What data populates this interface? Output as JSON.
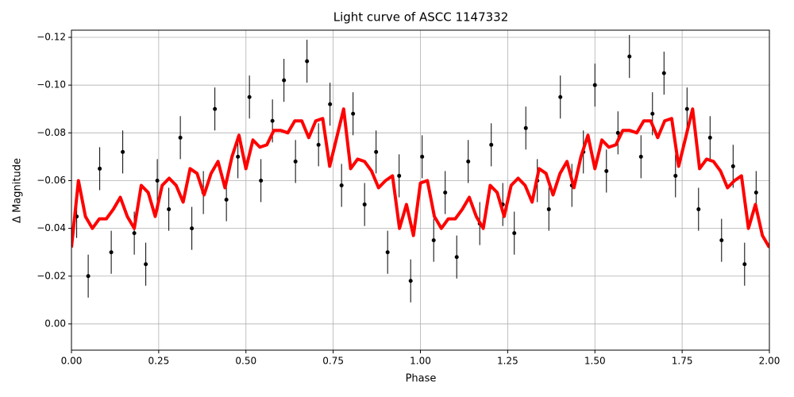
{
  "chart_data": {
    "type": "errorbar_scatter_line",
    "title": "Light curve of ASCC 1147332",
    "xlabel": "Phase",
    "ylabel": "Δ Magnitude",
    "xlim": [
      0,
      2
    ],
    "ylim": [
      -0.123,
      0.011
    ],
    "y_inverted": true,
    "grid": true,
    "xticks": [
      {
        "value": 0,
        "label": "0.00"
      },
      {
        "value": 0.25,
        "label": "0.25"
      },
      {
        "value": 0.5,
        "label": "0.50"
      },
      {
        "value": 0.75,
        "label": "0.75"
      },
      {
        "value": 1,
        "label": "1.00"
      },
      {
        "value": 1.25,
        "label": "1.25"
      },
      {
        "value": 1.5,
        "label": "1.50"
      },
      {
        "value": 1.75,
        "label": "1.75"
      },
      {
        "value": 2,
        "label": "2.00"
      }
    ],
    "yticks": [
      {
        "value": -0.12,
        "label": "−0.12"
      },
      {
        "value": -0.1,
        "label": "−0.10"
      },
      {
        "value": -0.08,
        "label": "−0.08"
      },
      {
        "value": -0.06,
        "label": "−0.06"
      },
      {
        "value": -0.04,
        "label": "−0.04"
      },
      {
        "value": -0.02,
        "label": "−0.02"
      },
      {
        "value": 0,
        "label": "0.00"
      }
    ],
    "series": [
      {
        "kind": "points",
        "color": "#000000",
        "error": 0.009,
        "x": [
          0.015,
          0.048,
          0.081,
          0.114,
          0.147,
          0.18,
          0.213,
          0.246,
          0.279,
          0.312,
          0.345,
          0.378,
          0.411,
          0.444,
          0.477,
          0.51,
          0.543,
          0.576,
          0.609,
          0.642,
          0.675,
          0.708,
          0.741,
          0.774,
          0.807,
          0.84,
          0.873,
          0.906,
          0.939,
          0.972,
          1.005,
          1.038,
          1.071,
          1.104,
          1.137,
          1.17,
          1.203,
          1.236,
          1.269,
          1.302,
          1.335,
          1.368,
          1.401,
          1.434,
          1.467,
          1.5,
          1.533,
          1.566,
          1.599,
          1.632,
          1.665,
          1.698,
          1.731,
          1.764,
          1.797,
          1.83,
          1.863,
          1.896,
          1.929,
          1.962
        ],
        "values": [
          -0.045,
          -0.02,
          -0.065,
          -0.03,
          -0.072,
          -0.038,
          -0.025,
          -0.06,
          -0.048,
          -0.078,
          -0.04,
          -0.055,
          -0.09,
          -0.052,
          -0.07,
          -0.095,
          -0.06,
          -0.085,
          -0.102,
          -0.068,
          -0.11,
          -0.075,
          -0.092,
          -0.058,
          -0.088,
          -0.05,
          -0.072,
          -0.03,
          -0.062,
          -0.018,
          -0.07,
          -0.035,
          -0.055,
          -0.028,
          -0.068,
          -0.042,
          -0.075,
          -0.05,
          -0.038,
          -0.082,
          -0.06,
          -0.048,
          -0.095,
          -0.058,
          -0.072,
          -0.1,
          -0.064,
          -0.08,
          -0.112,
          -0.07,
          -0.088,
          -0.105,
          -0.062,
          -0.09,
          -0.048,
          -0.078,
          -0.035,
          -0.066,
          -0.025,
          -0.055
        ]
      },
      {
        "kind": "line",
        "color": "#ff0000",
        "x": [
          0,
          0.02,
          0.04,
          0.06,
          0.08,
          0.1,
          0.12,
          0.14,
          0.16,
          0.18,
          0.2,
          0.22,
          0.24,
          0.26,
          0.28,
          0.3,
          0.32,
          0.34,
          0.36,
          0.38,
          0.4,
          0.42,
          0.44,
          0.46,
          0.48,
          0.5,
          0.52,
          0.54,
          0.56,
          0.58,
          0.6,
          0.62,
          0.64,
          0.66,
          0.68,
          0.7,
          0.72,
          0.74,
          0.76,
          0.78,
          0.8,
          0.82,
          0.84,
          0.86,
          0.88,
          0.9,
          0.92,
          0.94,
          0.96,
          0.98,
          1,
          1.02,
          1.04,
          1.06,
          1.08,
          1.1,
          1.12,
          1.14,
          1.16,
          1.18,
          1.2,
          1.22,
          1.24,
          1.26,
          1.28,
          1.3,
          1.32,
          1.34,
          1.36,
          1.38,
          1.4,
          1.42,
          1.44,
          1.46,
          1.48,
          1.5,
          1.52,
          1.54,
          1.56,
          1.58,
          1.6,
          1.62,
          1.64,
          1.66,
          1.68,
          1.7,
          1.72,
          1.74,
          1.76,
          1.78,
          1.8,
          1.82,
          1.84,
          1.86,
          1.88,
          1.9,
          1.92,
          1.94,
          1.96,
          1.98,
          2
        ],
        "values": [
          -0.032,
          -0.06,
          -0.045,
          -0.04,
          -0.044,
          -0.044,
          -0.048,
          -0.053,
          -0.045,
          -0.04,
          -0.058,
          -0.055,
          -0.045,
          -0.058,
          -0.061,
          -0.058,
          -0.051,
          -0.065,
          -0.063,
          -0.054,
          -0.063,
          -0.068,
          -0.057,
          -0.07,
          -0.079,
          -0.065,
          -0.077,
          -0.074,
          -0.075,
          -0.081,
          -0.081,
          -0.08,
          -0.085,
          -0.085,
          -0.078,
          -0.085,
          -0.086,
          -0.066,
          -0.078,
          -0.09,
          -0.065,
          -0.069,
          -0.068,
          -0.064,
          -0.057,
          -0.06,
          -0.062,
          -0.04,
          -0.05,
          -0.037,
          -0.059,
          -0.06,
          -0.045,
          -0.04,
          -0.044,
          -0.044,
          -0.048,
          -0.053,
          -0.045,
          -0.04,
          -0.058,
          -0.055,
          -0.045,
          -0.058,
          -0.061,
          -0.058,
          -0.051,
          -0.065,
          -0.063,
          -0.054,
          -0.063,
          -0.068,
          -0.057,
          -0.07,
          -0.079,
          -0.065,
          -0.077,
          -0.074,
          -0.075,
          -0.081,
          -0.081,
          -0.08,
          -0.085,
          -0.085,
          -0.078,
          -0.085,
          -0.086,
          -0.066,
          -0.078,
          -0.09,
          -0.065,
          -0.069,
          -0.068,
          -0.064,
          -0.057,
          -0.06,
          -0.062,
          -0.04,
          -0.05,
          -0.037,
          -0.032
        ]
      }
    ]
  }
}
